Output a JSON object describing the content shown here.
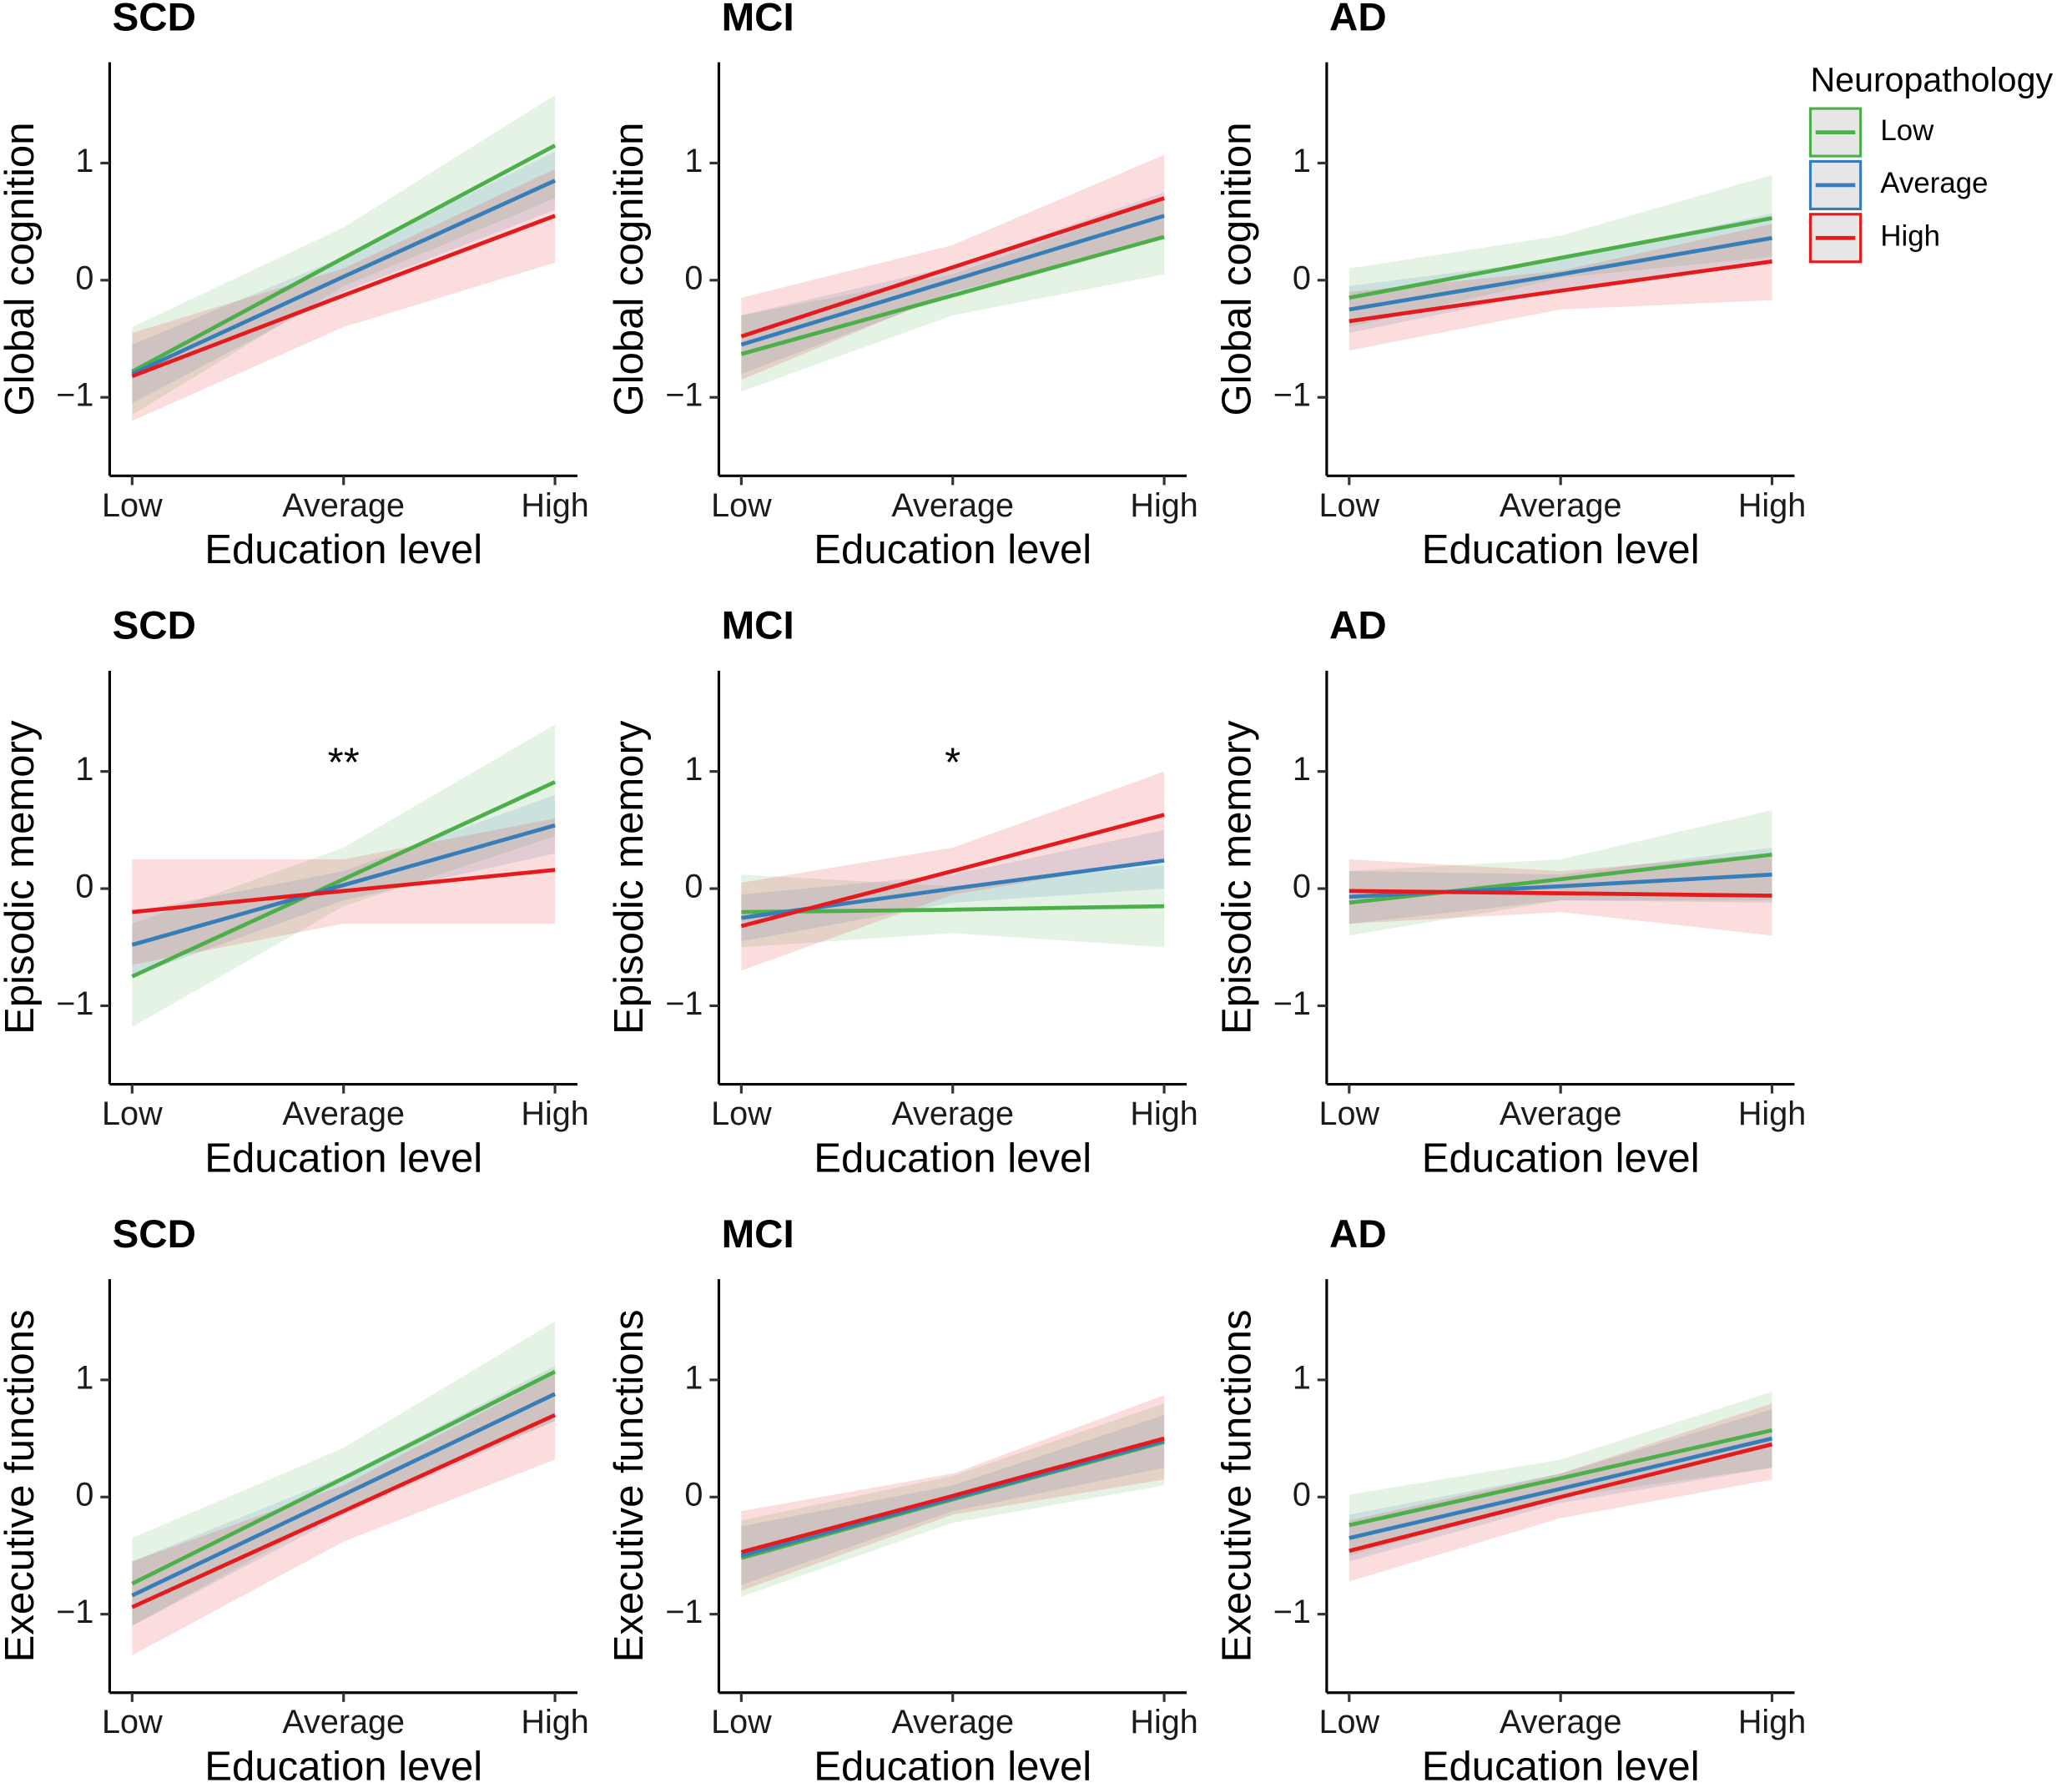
{
  "legend": {
    "title": "Neuropathology",
    "entries": [
      {
        "name": "Low",
        "color": "#4daf4a"
      },
      {
        "name": "Average",
        "color": "#377eb8"
      },
      {
        "name": "High",
        "color": "#e41a1c"
      }
    ]
  },
  "chart_data": [
    {
      "type": "line",
      "title": "SCD",
      "xlabel": "Education level",
      "ylabel": "Global cognition",
      "categories": [
        "Low",
        "Average",
        "High"
      ],
      "ylim": [
        -1.67,
        1.86
      ],
      "yticks": [
        {
          "value": -1,
          "label": "−1"
        },
        0,
        1
      ],
      "series": [
        {
          "values": [
            -0.78,
            0.19,
            1.15
          ],
          "lower": [
            -1.15,
            -0.05,
            0.7
          ],
          "upper": [
            -0.4,
            0.45,
            1.58
          ]
        },
        {
          "values": [
            -0.8,
            0.03,
            0.85
          ],
          "lower": [
            -1.05,
            -0.1,
            0.6
          ],
          "upper": [
            -0.55,
            0.2,
            1.1
          ]
        },
        {
          "values": [
            -0.82,
            -0.13,
            0.55
          ],
          "lower": [
            -1.2,
            -0.4,
            0.15
          ],
          "upper": [
            -0.45,
            0.1,
            0.95
          ]
        }
      ]
    },
    {
      "type": "line",
      "title": "MCI",
      "xlabel": "Education level",
      "ylabel": "Global cognition",
      "categories": [
        "Low",
        "Average",
        "High"
      ],
      "ylim": [
        -1.67,
        1.86
      ],
      "yticks": [
        {
          "value": -1,
          "label": "−1"
        },
        0,
        1
      ],
      "series": [
        {
          "values": [
            -0.63,
            -0.13,
            0.37
          ],
          "lower": [
            -0.95,
            -0.3,
            0.05
          ],
          "upper": [
            -0.3,
            0.05,
            0.7
          ]
        },
        {
          "values": [
            -0.55,
            0,
            0.55
          ],
          "lower": [
            -0.8,
            -0.12,
            0.35
          ],
          "upper": [
            -0.3,
            0.12,
            0.75
          ]
        },
        {
          "values": [
            -0.48,
            0.11,
            0.7
          ],
          "lower": [
            -0.85,
            -0.1,
            0.35
          ],
          "upper": [
            -0.15,
            0.3,
            1.07
          ]
        }
      ]
    },
    {
      "type": "line",
      "title": "AD",
      "xlabel": "Education level",
      "ylabel": "Global cognition",
      "categories": [
        "Low",
        "Average",
        "High"
      ],
      "ylim": [
        -1.67,
        1.86
      ],
      "yticks": [
        {
          "value": -1,
          "label": "−1"
        },
        0,
        1
      ],
      "series": [
        {
          "values": [
            -0.15,
            0.19,
            0.53
          ],
          "lower": [
            -0.4,
            0.02,
            0.2
          ],
          "upper": [
            0.1,
            0.38,
            0.9
          ]
        },
        {
          "values": [
            -0.25,
            0.05,
            0.36
          ],
          "lower": [
            -0.45,
            -0.08,
            0.15
          ],
          "upper": [
            -0.05,
            0.18,
            0.57
          ]
        },
        {
          "values": [
            -0.35,
            -0.09,
            0.16
          ],
          "lower": [
            -0.6,
            -0.25,
            -0.17
          ],
          "upper": [
            -0.1,
            0.08,
            0.48
          ]
        }
      ]
    },
    {
      "type": "line",
      "title": "SCD",
      "xlabel": "Education level",
      "ylabel": "Episodic memory",
      "categories": [
        "Low",
        "Average",
        "High"
      ],
      "ylim": [
        -1.67,
        1.86
      ],
      "yticks": [
        {
          "value": -1,
          "label": "−1"
        },
        0,
        1
      ],
      "annotation": {
        "text": "**",
        "x": 1,
        "y": 1.05
      },
      "series": [
        {
          "values": [
            -0.75,
            0.08,
            0.91
          ],
          "lower": [
            -1.18,
            -0.15,
            0.45
          ],
          "upper": [
            -0.3,
            0.35,
            1.4
          ]
        },
        {
          "values": [
            -0.48,
            0.03,
            0.54
          ],
          "lower": [
            -0.75,
            -0.1,
            0.3
          ],
          "upper": [
            -0.2,
            0.15,
            0.8
          ]
        },
        {
          "values": [
            -0.2,
            -0.02,
            0.16
          ],
          "lower": [
            -0.65,
            -0.3,
            -0.3
          ],
          "upper": [
            0.25,
            0.25,
            0.6
          ]
        }
      ]
    },
    {
      "type": "line",
      "title": "MCI",
      "xlabel": "Education level",
      "ylabel": "Episodic memory",
      "categories": [
        "Low",
        "Average",
        "High"
      ],
      "ylim": [
        -1.67,
        1.86
      ],
      "yticks": [
        {
          "value": -1,
          "label": "−1"
        },
        0,
        1
      ],
      "annotation": {
        "text": "*",
        "x": 1,
        "y": 1.05
      },
      "series": [
        {
          "values": [
            -0.2,
            -0.18,
            -0.15
          ],
          "lower": [
            -0.5,
            -0.38,
            -0.5
          ],
          "upper": [
            0.12,
            0.02,
            0.2
          ]
        },
        {
          "values": [
            -0.25,
            0,
            0.24
          ],
          "lower": [
            -0.45,
            -0.12,
            0
          ],
          "upper": [
            -0.05,
            0.12,
            0.5
          ]
        },
        {
          "values": [
            -0.32,
            0.15,
            0.63
          ],
          "lower": [
            -0.7,
            -0.05,
            0.25
          ],
          "upper": [
            0.05,
            0.35,
            1.0
          ]
        }
      ]
    },
    {
      "type": "line",
      "title": "AD",
      "xlabel": "Education level",
      "ylabel": "Episodic memory",
      "categories": [
        "Low",
        "Average",
        "High"
      ],
      "ylim": [
        -1.67,
        1.86
      ],
      "yticks": [
        {
          "value": -1,
          "label": "−1"
        },
        0,
        1
      ],
      "series": [
        {
          "values": [
            -0.12,
            0.08,
            0.29
          ],
          "lower": [
            -0.4,
            -0.1,
            -0.1
          ],
          "upper": [
            0.15,
            0.25,
            0.67
          ]
        },
        {
          "values": [
            -0.07,
            0.02,
            0.12
          ],
          "lower": [
            -0.3,
            -0.1,
            -0.12
          ],
          "upper": [
            0.15,
            0.12,
            0.35
          ]
        },
        {
          "values": [
            -0.02,
            -0.04,
            -0.06
          ],
          "lower": [
            -0.3,
            -0.2,
            -0.4
          ],
          "upper": [
            0.25,
            0.15,
            0.3
          ]
        }
      ]
    },
    {
      "type": "line",
      "title": "SCD",
      "xlabel": "Education level",
      "ylabel": "Executive functions",
      "categories": [
        "Low",
        "Average",
        "High"
      ],
      "ylim": [
        -1.67,
        1.86
      ],
      "yticks": [
        {
          "value": -1,
          "label": "−1"
        },
        0,
        1
      ],
      "series": [
        {
          "values": [
            -0.74,
            0.16,
            1.07
          ],
          "lower": [
            -1.1,
            -0.1,
            0.65
          ],
          "upper": [
            -0.35,
            0.42,
            1.5
          ]
        },
        {
          "values": [
            -0.84,
            0.02,
            0.88
          ],
          "lower": [
            -1.1,
            -0.15,
            0.65
          ],
          "upper": [
            -0.55,
            0.18,
            1.12
          ]
        },
        {
          "values": [
            -0.94,
            -0.12,
            0.7
          ],
          "lower": [
            -1.35,
            -0.38,
            0.32
          ],
          "upper": [
            -0.55,
            0.1,
            1.05
          ]
        }
      ]
    },
    {
      "type": "line",
      "title": "MCI",
      "xlabel": "Education level",
      "ylabel": "Executive functions",
      "categories": [
        "Low",
        "Average",
        "High"
      ],
      "ylim": [
        -1.67,
        1.86
      ],
      "yticks": [
        {
          "value": -1,
          "label": "−1"
        },
        0,
        1
      ],
      "series": [
        {
          "values": [
            -0.52,
            -0.02,
            0.47
          ],
          "lower": [
            -0.85,
            -0.22,
            0.1
          ],
          "upper": [
            -0.2,
            0.18,
            0.8
          ]
        },
        {
          "values": [
            -0.5,
            -0.01,
            0.48
          ],
          "lower": [
            -0.75,
            -0.12,
            0.25
          ],
          "upper": [
            -0.25,
            0.1,
            0.7
          ]
        },
        {
          "values": [
            -0.47,
            0.01,
            0.5
          ],
          "lower": [
            -0.8,
            -0.15,
            0.15
          ],
          "upper": [
            -0.12,
            0.2,
            0.87
          ]
        }
      ]
    },
    {
      "type": "line",
      "title": "AD",
      "xlabel": "Education level",
      "ylabel": "Executive functions",
      "categories": [
        "Low",
        "Average",
        "High"
      ],
      "ylim": [
        -1.67,
        1.86
      ],
      "yticks": [
        {
          "value": -1,
          "label": "−1"
        },
        0,
        1
      ],
      "series": [
        {
          "values": [
            -0.24,
            0.16,
            0.57
          ],
          "lower": [
            -0.5,
            0,
            0.25
          ],
          "upper": [
            0.02,
            0.32,
            0.9
          ]
        },
        {
          "values": [
            -0.35,
            0.07,
            0.5
          ],
          "lower": [
            -0.55,
            -0.05,
            0.25
          ],
          "upper": [
            -0.15,
            0.2,
            0.75
          ]
        },
        {
          "values": [
            -0.46,
            0,
            0.45
          ],
          "lower": [
            -0.72,
            -0.18,
            0.15
          ],
          "upper": [
            -0.2,
            0.2,
            0.8
          ]
        }
      ]
    }
  ]
}
